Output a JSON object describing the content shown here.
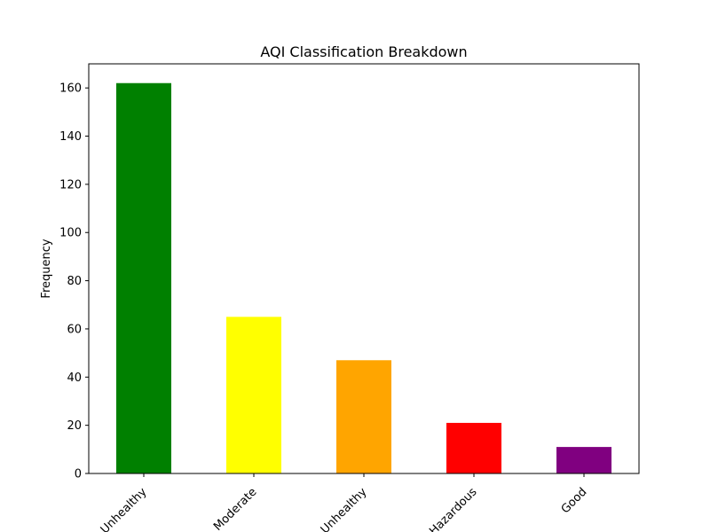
{
  "chart_data": {
    "type": "bar",
    "title": "AQI Classification Breakdown",
    "xlabel": "",
    "ylabel": "Frequency",
    "categories": [
      "Unhealthy",
      "Moderate",
      "Unhealthy",
      "Hazardous",
      "Good"
    ],
    "values": [
      162,
      65,
      47,
      21,
      11
    ],
    "colors": [
      "#008000",
      "#ffff00",
      "#ffa500",
      "#ff0000",
      "#800080"
    ],
    "ylim": [
      0,
      170
    ],
    "yticks": [
      0,
      20,
      40,
      60,
      80,
      100,
      120,
      140,
      160
    ],
    "grid": false,
    "legend": "none"
  }
}
